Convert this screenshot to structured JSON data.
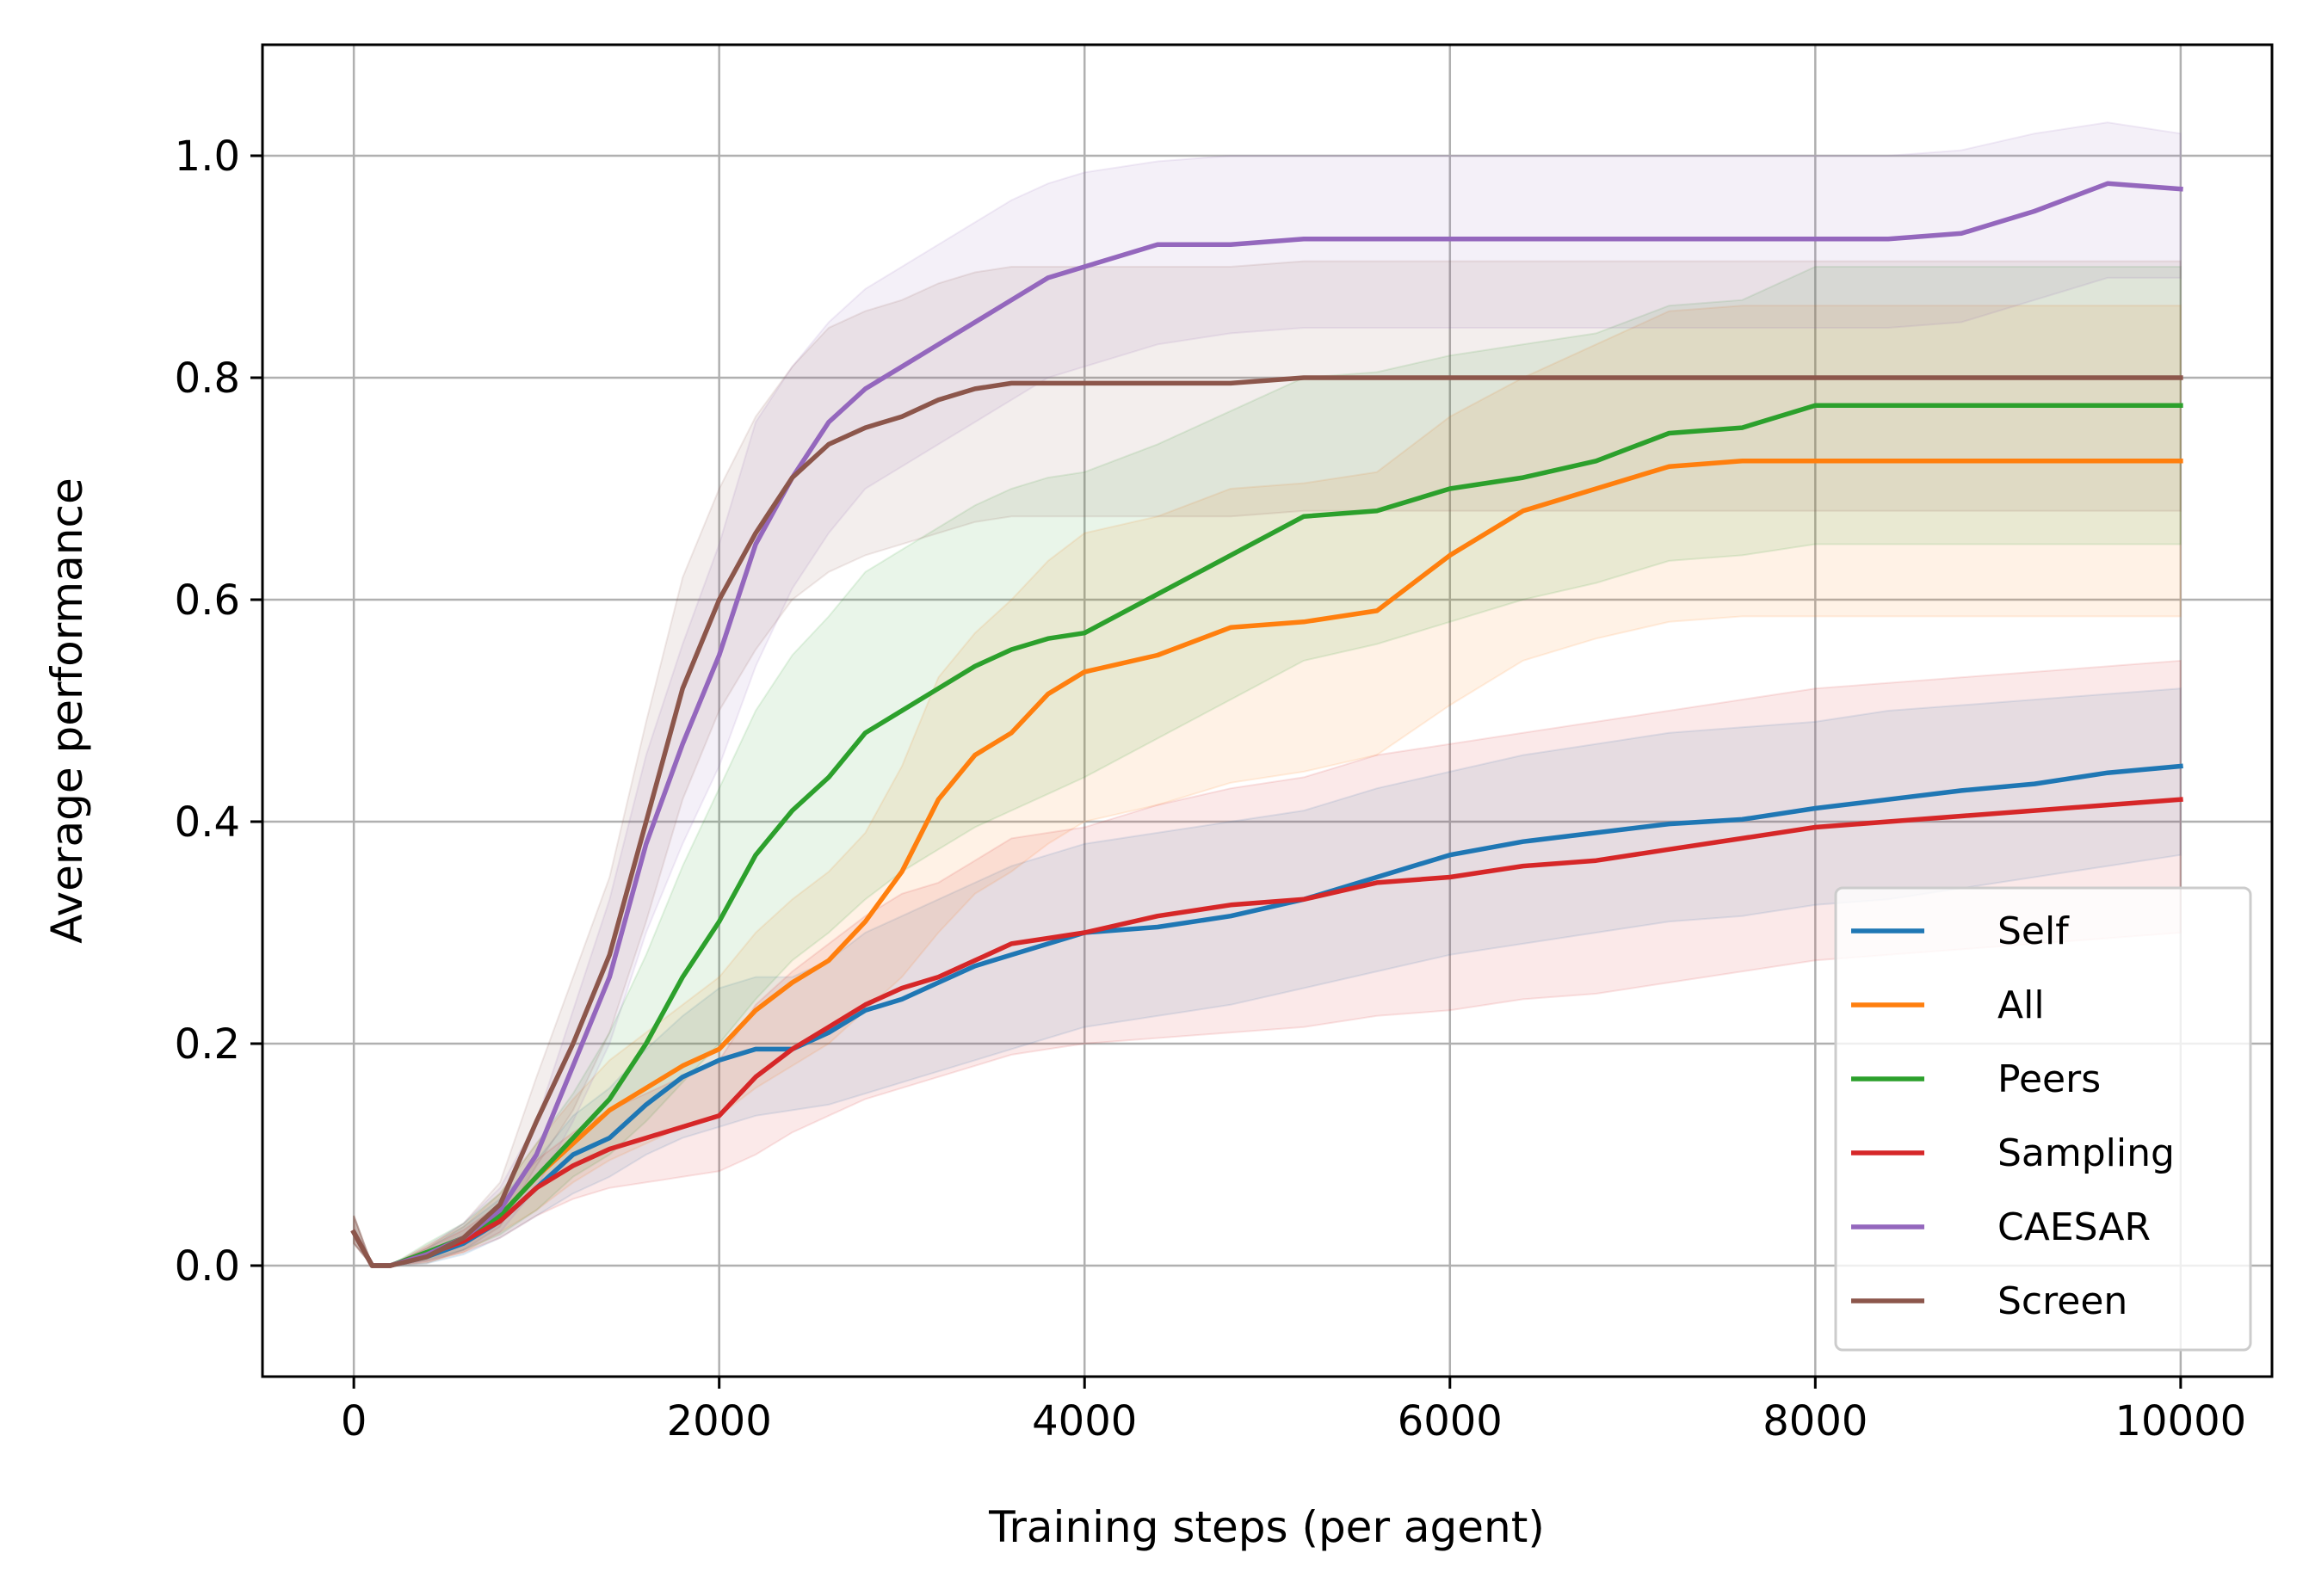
{
  "chart_data": {
    "type": "line",
    "title": "",
    "xlabel": "Training steps (per agent)",
    "ylabel": "Average performance",
    "xlim": [
      -500,
      10500
    ],
    "ylim": [
      -0.1,
      1.1
    ],
    "xticks": [
      0,
      2000,
      4000,
      6000,
      8000,
      10000
    ],
    "xtick_labels": [
      "0",
      "2000",
      "4000",
      "6000",
      "8000",
      "10000"
    ],
    "yticks": [
      0.0,
      0.2,
      0.4,
      0.6,
      0.8,
      1.0
    ],
    "ytick_labels": [
      "0.0",
      "0.2",
      "0.4",
      "0.6",
      "0.8",
      "1.0"
    ],
    "grid": true,
    "legend_position": "lower-right",
    "shaded_band": "mean ± std (light fill, same hue)",
    "x": [
      0,
      100,
      200,
      400,
      600,
      800,
      1000,
      1200,
      1400,
      1600,
      1800,
      2000,
      2200,
      2400,
      2600,
      2800,
      3000,
      3200,
      3400,
      3600,
      3800,
      4000,
      4400,
      4800,
      5200,
      5600,
      6000,
      6400,
      6800,
      7200,
      7600,
      8000,
      8400,
      8800,
      9200,
      9600,
      10000
    ],
    "series": [
      {
        "name": "Self",
        "color": "#1f77b4",
        "values": [
          0.03,
          0.0,
          0.0,
          0.008,
          0.02,
          0.04,
          0.07,
          0.1,
          0.115,
          0.145,
          0.17,
          0.185,
          0.195,
          0.195,
          0.21,
          0.23,
          0.24,
          0.255,
          0.27,
          0.28,
          0.29,
          0.3,
          0.305,
          0.315,
          0.33,
          0.35,
          0.37,
          0.382,
          0.39,
          0.398,
          0.402,
          0.412,
          0.42,
          0.428,
          0.434,
          0.444,
          0.45
        ],
        "lower": [
          0.02,
          0.0,
          0.0,
          0.002,
          0.01,
          0.025,
          0.045,
          0.065,
          0.08,
          0.1,
          0.115,
          0.125,
          0.135,
          0.14,
          0.145,
          0.155,
          0.165,
          0.175,
          0.185,
          0.195,
          0.205,
          0.215,
          0.225,
          0.235,
          0.25,
          0.265,
          0.28,
          0.29,
          0.3,
          0.31,
          0.315,
          0.325,
          0.33,
          0.34,
          0.35,
          0.36,
          0.37
        ],
        "upper": [
          0.045,
          0.0,
          0.0,
          0.015,
          0.035,
          0.06,
          0.095,
          0.135,
          0.16,
          0.195,
          0.225,
          0.25,
          0.26,
          0.26,
          0.275,
          0.3,
          0.315,
          0.33,
          0.345,
          0.36,
          0.37,
          0.38,
          0.39,
          0.4,
          0.41,
          0.43,
          0.445,
          0.46,
          0.47,
          0.48,
          0.485,
          0.49,
          0.5,
          0.505,
          0.51,
          0.515,
          0.52
        ]
      },
      {
        "name": "All",
        "color": "#ff7f0e",
        "values": [
          0.03,
          0.0,
          0.0,
          0.01,
          0.022,
          0.045,
          0.08,
          0.11,
          0.14,
          0.16,
          0.18,
          0.195,
          0.23,
          0.255,
          0.275,
          0.31,
          0.355,
          0.42,
          0.46,
          0.48,
          0.515,
          0.535,
          0.55,
          0.575,
          0.58,
          0.59,
          0.64,
          0.68,
          0.7,
          0.72,
          0.725,
          0.725,
          0.725,
          0.725,
          0.725,
          0.725,
          0.725
        ],
        "lower": [
          0.02,
          0.0,
          0.0,
          0.003,
          0.012,
          0.03,
          0.05,
          0.075,
          0.095,
          0.11,
          0.125,
          0.135,
          0.16,
          0.18,
          0.2,
          0.23,
          0.26,
          0.3,
          0.335,
          0.355,
          0.38,
          0.4,
          0.415,
          0.435,
          0.445,
          0.46,
          0.505,
          0.545,
          0.565,
          0.58,
          0.585,
          0.585,
          0.585,
          0.585,
          0.585,
          0.585,
          0.585
        ],
        "upper": [
          0.045,
          0.0,
          0.0,
          0.018,
          0.035,
          0.065,
          0.11,
          0.15,
          0.185,
          0.21,
          0.235,
          0.26,
          0.3,
          0.33,
          0.355,
          0.39,
          0.45,
          0.53,
          0.57,
          0.6,
          0.635,
          0.66,
          0.675,
          0.7,
          0.705,
          0.715,
          0.765,
          0.8,
          0.83,
          0.86,
          0.865,
          0.865,
          0.865,
          0.865,
          0.865,
          0.865,
          0.865
        ]
      },
      {
        "name": "Peers",
        "color": "#2ca02c",
        "values": [
          0.03,
          0.0,
          0.0,
          0.012,
          0.025,
          0.045,
          0.08,
          0.115,
          0.15,
          0.2,
          0.26,
          0.31,
          0.37,
          0.41,
          0.44,
          0.48,
          0.5,
          0.52,
          0.54,
          0.555,
          0.565,
          0.57,
          0.605,
          0.64,
          0.675,
          0.68,
          0.7,
          0.71,
          0.725,
          0.75,
          0.755,
          0.775,
          0.775,
          0.775,
          0.775,
          0.775,
          0.775
        ],
        "lower": [
          0.02,
          0.0,
          0.0,
          0.005,
          0.014,
          0.028,
          0.05,
          0.08,
          0.1,
          0.13,
          0.165,
          0.2,
          0.24,
          0.275,
          0.3,
          0.33,
          0.355,
          0.375,
          0.395,
          0.41,
          0.425,
          0.44,
          0.475,
          0.51,
          0.545,
          0.56,
          0.58,
          0.6,
          0.615,
          0.635,
          0.64,
          0.65,
          0.65,
          0.65,
          0.65,
          0.65,
          0.65
        ],
        "upper": [
          0.045,
          0.0,
          0.0,
          0.02,
          0.038,
          0.065,
          0.11,
          0.155,
          0.21,
          0.28,
          0.36,
          0.43,
          0.5,
          0.55,
          0.585,
          0.625,
          0.645,
          0.665,
          0.685,
          0.7,
          0.71,
          0.715,
          0.74,
          0.77,
          0.8,
          0.805,
          0.82,
          0.83,
          0.84,
          0.865,
          0.87,
          0.9,
          0.9,
          0.9,
          0.9,
          0.9,
          0.9
        ]
      },
      {
        "name": "Sampling",
        "color": "#d62728",
        "values": [
          0.03,
          0.0,
          0.0,
          0.01,
          0.022,
          0.04,
          0.07,
          0.09,
          0.105,
          0.115,
          0.125,
          0.135,
          0.17,
          0.195,
          0.215,
          0.235,
          0.25,
          0.26,
          0.275,
          0.29,
          0.295,
          0.3,
          0.315,
          0.325,
          0.33,
          0.345,
          0.35,
          0.36,
          0.365,
          0.375,
          0.385,
          0.395,
          0.4,
          0.405,
          0.41,
          0.415,
          0.42
        ],
        "lower": [
          0.02,
          0.0,
          0.0,
          0.004,
          0.012,
          0.025,
          0.045,
          0.06,
          0.07,
          0.075,
          0.08,
          0.085,
          0.1,
          0.12,
          0.135,
          0.15,
          0.16,
          0.17,
          0.18,
          0.19,
          0.195,
          0.2,
          0.205,
          0.21,
          0.215,
          0.225,
          0.23,
          0.24,
          0.245,
          0.255,
          0.265,
          0.275,
          0.28,
          0.285,
          0.29,
          0.295,
          0.3
        ],
        "upper": [
          0.045,
          0.0,
          0.0,
          0.016,
          0.032,
          0.055,
          0.095,
          0.12,
          0.14,
          0.155,
          0.17,
          0.185,
          0.235,
          0.265,
          0.29,
          0.315,
          0.335,
          0.345,
          0.365,
          0.385,
          0.39,
          0.395,
          0.415,
          0.43,
          0.44,
          0.46,
          0.47,
          0.48,
          0.49,
          0.5,
          0.51,
          0.52,
          0.525,
          0.53,
          0.535,
          0.54,
          0.545
        ]
      },
      {
        "name": "CAESAR",
        "color": "#9467bd",
        "values": [
          0.03,
          0.0,
          0.0,
          0.01,
          0.025,
          0.05,
          0.1,
          0.18,
          0.26,
          0.38,
          0.47,
          0.55,
          0.65,
          0.71,
          0.76,
          0.79,
          0.81,
          0.83,
          0.85,
          0.87,
          0.89,
          0.9,
          0.92,
          0.92,
          0.925,
          0.925,
          0.925,
          0.925,
          0.925,
          0.925,
          0.925,
          0.925,
          0.925,
          0.93,
          0.95,
          0.975,
          0.97
        ],
        "lower": [
          0.02,
          0.0,
          0.0,
          0.004,
          0.014,
          0.03,
          0.07,
          0.13,
          0.2,
          0.3,
          0.38,
          0.45,
          0.54,
          0.61,
          0.66,
          0.7,
          0.72,
          0.74,
          0.76,
          0.78,
          0.8,
          0.81,
          0.83,
          0.84,
          0.845,
          0.845,
          0.845,
          0.845,
          0.845,
          0.845,
          0.845,
          0.845,
          0.845,
          0.85,
          0.87,
          0.89,
          0.89
        ],
        "upper": [
          0.045,
          0.0,
          0.0,
          0.018,
          0.038,
          0.07,
          0.13,
          0.23,
          0.33,
          0.46,
          0.56,
          0.65,
          0.76,
          0.81,
          0.85,
          0.88,
          0.9,
          0.92,
          0.94,
          0.96,
          0.975,
          0.985,
          0.995,
          1.0,
          1.0,
          1.0,
          1.0,
          1.0,
          1.0,
          1.0,
          1.0,
          1.0,
          1.0,
          1.005,
          1.02,
          1.03,
          1.02
        ]
      },
      {
        "name": "Screen",
        "color": "#8c564b",
        "values": [
          0.03,
          0.0,
          0.0,
          0.008,
          0.025,
          0.055,
          0.13,
          0.2,
          0.28,
          0.4,
          0.52,
          0.6,
          0.66,
          0.71,
          0.74,
          0.755,
          0.765,
          0.78,
          0.79,
          0.795,
          0.795,
          0.795,
          0.795,
          0.795,
          0.8,
          0.8,
          0.8,
          0.8,
          0.8,
          0.8,
          0.8,
          0.8,
          0.8,
          0.8,
          0.8,
          0.8,
          0.8
        ],
        "lower": [
          0.02,
          0.0,
          0.0,
          0.002,
          0.014,
          0.035,
          0.09,
          0.14,
          0.21,
          0.31,
          0.42,
          0.5,
          0.555,
          0.6,
          0.625,
          0.64,
          0.65,
          0.66,
          0.67,
          0.675,
          0.675,
          0.675,
          0.675,
          0.675,
          0.68,
          0.68,
          0.68,
          0.68,
          0.68,
          0.68,
          0.68,
          0.68,
          0.68,
          0.68,
          0.68,
          0.68,
          0.68
        ],
        "upper": [
          0.045,
          0.0,
          0.0,
          0.016,
          0.038,
          0.075,
          0.17,
          0.26,
          0.35,
          0.49,
          0.62,
          0.7,
          0.765,
          0.81,
          0.845,
          0.86,
          0.87,
          0.885,
          0.895,
          0.9,
          0.9,
          0.9,
          0.9,
          0.9,
          0.905,
          0.905,
          0.905,
          0.905,
          0.905,
          0.905,
          0.905,
          0.905,
          0.905,
          0.905,
          0.905,
          0.905,
          0.905
        ]
      }
    ]
  }
}
